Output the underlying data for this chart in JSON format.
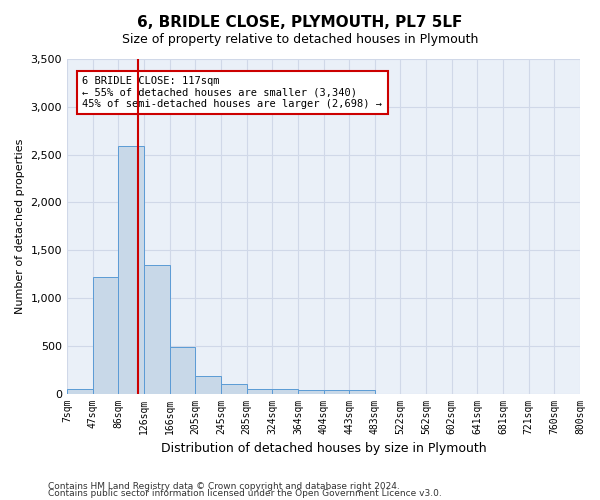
{
  "title": "6, BRIDLE CLOSE, PLYMOUTH, PL7 5LF",
  "subtitle": "Size of property relative to detached houses in Plymouth",
  "xlabel": "Distribution of detached houses by size in Plymouth",
  "ylabel": "Number of detached properties",
  "footer_line1": "Contains HM Land Registry data © Crown copyright and database right 2024.",
  "footer_line2": "Contains public sector information licensed under the Open Government Licence v3.0.",
  "bin_labels": [
    "7sqm",
    "47sqm",
    "86sqm",
    "126sqm",
    "166sqm",
    "205sqm",
    "245sqm",
    "285sqm",
    "324sqm",
    "364sqm",
    "404sqm",
    "443sqm",
    "483sqm",
    "522sqm",
    "562sqm",
    "602sqm",
    "641sqm",
    "681sqm",
    "721sqm",
    "760sqm",
    "800sqm"
  ],
  "bar_values": [
    50,
    1220,
    2590,
    1340,
    490,
    185,
    100,
    45,
    45,
    35,
    35,
    35,
    0,
    0,
    0,
    0,
    0,
    0,
    0,
    0
  ],
  "bar_color": "#c8d8e8",
  "bar_edge_color": "#5b9bd5",
  "grid_color": "#d0d8e8",
  "background_color": "#eaf0f8",
  "property_line_color": "#cc0000",
  "annotation_line1": "6 BRIDLE CLOSE: 117sqm",
  "annotation_line2": "← 55% of detached houses are smaller (3,340)",
  "annotation_line3": "45% of semi-detached houses are larger (2,698) →",
  "annotation_box_color": "#ffffff",
  "annotation_box_edge_color": "#cc0000",
  "ylim": [
    0,
    3500
  ],
  "yticks": [
    0,
    500,
    1000,
    1500,
    2000,
    2500,
    3000,
    3500
  ],
  "property_sqm": 117,
  "bin_start_sqm": [
    7,
    47,
    86,
    126,
    166,
    205,
    245,
    285,
    324,
    364,
    404,
    443,
    483,
    522,
    562,
    602,
    641,
    681,
    721,
    760,
    800
  ]
}
